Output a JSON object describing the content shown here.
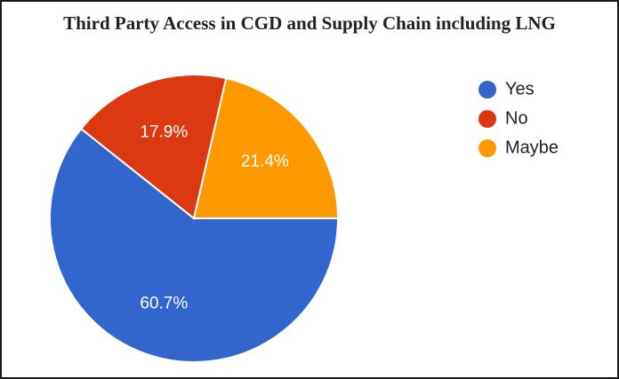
{
  "chart_data": {
    "type": "pie",
    "title": "Third Party Access in CGD and Supply Chain including LNG",
    "categories": [
      "Yes",
      "No",
      "Maybe"
    ],
    "values": [
      60.7,
      17.9,
      21.4
    ],
    "labels": [
      "60.7%",
      "17.9%",
      "21.4%"
    ],
    "colors": [
      "#3366cc",
      "#dc3912",
      "#ff9900"
    ],
    "legend_position": "right"
  }
}
